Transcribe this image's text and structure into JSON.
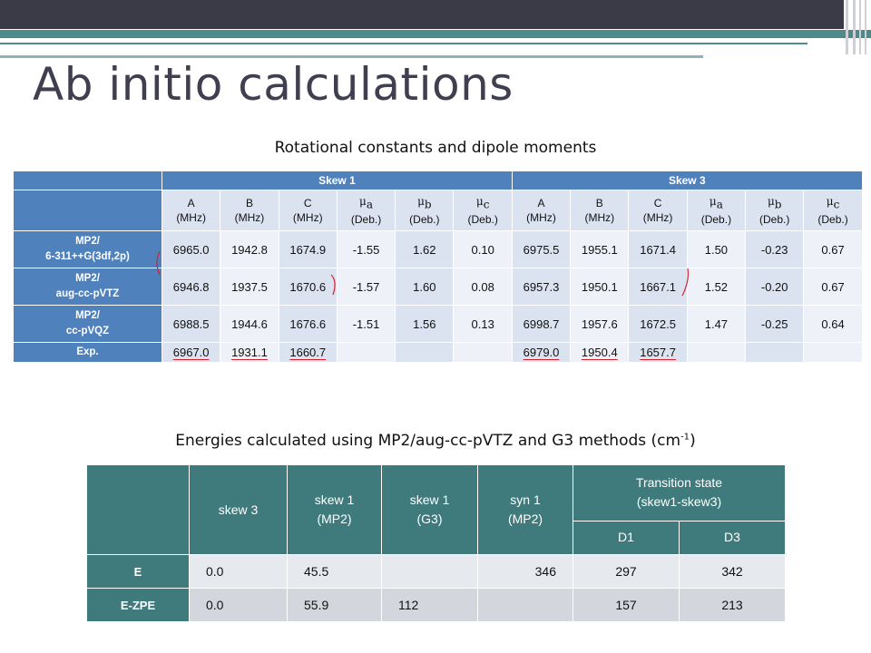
{
  "slide": {
    "title": "Ab initio calculations",
    "caption1": "Rotational constants and dipole moments",
    "caption2": {
      "text": "Energies calculated using MP2/aug-cc-pVTZ and G3 methods (cm",
      "sup": "-1",
      "close": ")"
    }
  },
  "table1": {
    "group_headers": [
      "Skew 1",
      "Skew 3"
    ],
    "subheaders": [
      {
        "sym": "A",
        "unit": "(MHz)"
      },
      {
        "sym": "B",
        "unit": "(MHz)"
      },
      {
        "sym": "C",
        "unit": "(MHz)"
      },
      {
        "sym": "μ",
        "subscript": "a",
        "unit": "(Deb.)"
      },
      {
        "sym": "μ",
        "subscript": "b",
        "unit": "(Deb.)"
      },
      {
        "sym": "μ",
        "subscript": "c",
        "unit": "(Deb.)"
      }
    ],
    "rows": [
      {
        "label1": "MP2/",
        "label2": "6-311++G(3df,2p)",
        "values": [
          "6965.0",
          "1942.8",
          "1674.9",
          "-1.55",
          "1.62",
          "0.10",
          "6975.5",
          "1955.1",
          "1671.4",
          "1.50",
          "-0.23",
          "0.67"
        ]
      },
      {
        "label1": "MP2/",
        "label2": "aug-cc-pVTZ",
        "values": [
          "6946.8",
          "1937.5",
          "1670.6",
          "-1.57",
          "1.60",
          "0.08",
          "6957.3",
          "1950.1",
          "1667.1",
          "1.52",
          "-0.20",
          "0.67"
        ]
      },
      {
        "label1": "MP2/",
        "label2": "cc-pVQZ",
        "values": [
          "6988.5",
          "1944.6",
          "1676.6",
          "-1.51",
          "1.56",
          "0.13",
          "6998.7",
          "1957.6",
          "1672.5",
          "1.47",
          "-0.25",
          "0.64"
        ]
      },
      {
        "label1": "Exp.",
        "label2": "",
        "values": [
          "6967.0",
          "1931.1",
          "1660.7",
          "",
          "",
          "",
          "6979.0",
          "1950.4",
          "1657.7",
          "",
          "",
          ""
        ]
      }
    ]
  },
  "table2": {
    "headers": [
      "skew 3",
      "skew 1\n(MP2)",
      "skew 1\n(G3)",
      "syn 1\n(MP2)"
    ],
    "ts_header": "Transition state\n(skew1-skew3)",
    "ts_sub": [
      "D1",
      "D3"
    ],
    "rows": [
      {
        "label": "E",
        "values": [
          "0.0",
          "45.5",
          "",
          "346",
          "297",
          "342"
        ]
      },
      {
        "label": "E-ZPE",
        "values": [
          "0.0",
          "55.9",
          "112",
          "",
          "157",
          "213"
        ]
      }
    ]
  },
  "colors": {
    "accent_blue": "#4f81bd",
    "accent_teal": "#3f7a7c",
    "mark_red": "#d81e2b",
    "title": "#3f3f50"
  }
}
